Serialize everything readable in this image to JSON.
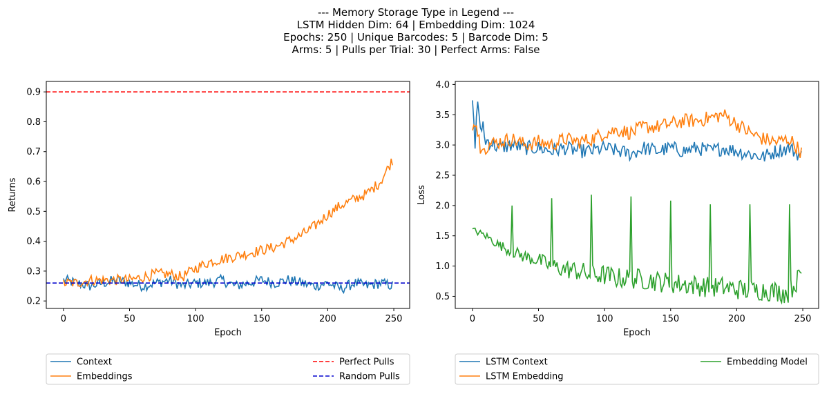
{
  "figure": {
    "title_lines": [
      "--- Memory Storage Type in Legend ---",
      "LSTM Hidden Dim: 64 | Embedding Dim: 1024",
      "Epochs: 250 | Unique Barcodes: 5 | Barcode Dim: 5",
      "Arms: 5 | Pulls per Trial: 30 | Perfect Arms: False"
    ]
  },
  "chart_data": [
    {
      "type": "line",
      "xlabel": "Epoch",
      "ylabel": "Returns",
      "xlim": [
        -13,
        262
      ],
      "ylim": [
        0.175,
        0.935
      ],
      "xticks": [
        0,
        50,
        100,
        150,
        200,
        250
      ],
      "yticks": [
        0.2,
        0.3,
        0.4,
        0.5,
        0.6,
        0.7,
        0.8,
        0.9
      ],
      "ytick_labels": [
        "0.2",
        "0.3",
        "0.4",
        "0.5",
        "0.6",
        "0.7",
        "0.8",
        "0.9"
      ],
      "legend": "below",
      "series": [
        {
          "name": "Context",
          "color": "#1f77b4",
          "style": "solid",
          "x": [
            0,
            10,
            20,
            30,
            40,
            50,
            60,
            70,
            80,
            90,
            100,
            110,
            120,
            130,
            140,
            150,
            160,
            170,
            180,
            190,
            200,
            210,
            220,
            230,
            240,
            250
          ],
          "y": [
            0.27,
            0.26,
            0.25,
            0.26,
            0.27,
            0.26,
            0.25,
            0.26,
            0.27,
            0.25,
            0.26,
            0.26,
            0.27,
            0.25,
            0.26,
            0.27,
            0.26,
            0.27,
            0.26,
            0.25,
            0.26,
            0.24,
            0.26,
            0.25,
            0.26,
            0.25
          ]
        },
        {
          "name": "Embeddings",
          "color": "#ff7f0e",
          "style": "solid",
          "x": [
            0,
            10,
            20,
            30,
            40,
            50,
            60,
            70,
            80,
            90,
            100,
            110,
            120,
            130,
            140,
            150,
            160,
            170,
            180,
            190,
            200,
            210,
            220,
            230,
            240,
            250
          ],
          "y": [
            0.26,
            0.26,
            0.27,
            0.27,
            0.27,
            0.27,
            0.28,
            0.29,
            0.29,
            0.28,
            0.31,
            0.33,
            0.34,
            0.35,
            0.36,
            0.37,
            0.38,
            0.4,
            0.42,
            0.45,
            0.49,
            0.52,
            0.54,
            0.56,
            0.6,
            0.68
          ]
        },
        {
          "name": "Perfect Pulls",
          "color": "#ff0000",
          "style": "dashed",
          "hline": 0.9
        },
        {
          "name": "Random Pulls",
          "color": "#0000cd",
          "style": "dashed",
          "hline": 0.26
        }
      ]
    },
    {
      "type": "line",
      "xlabel": "Epoch",
      "ylabel": "Loss",
      "xlim": [
        -13,
        262
      ],
      "ylim": [
        0.3,
        4.05
      ],
      "xticks": [
        0,
        50,
        100,
        150,
        200,
        250
      ],
      "yticks": [
        0.5,
        1.0,
        1.5,
        2.0,
        2.5,
        3.0,
        3.5,
        4.0
      ],
      "ytick_labels": [
        "0.5",
        "1.0",
        "1.5",
        "2.0",
        "2.5",
        "3.0",
        "3.5",
        "4.0"
      ],
      "legend": "below",
      "series": [
        {
          "name": "LSTM Context",
          "color": "#1f77b4",
          "style": "solid",
          "x": [
            0,
            2,
            4,
            6,
            8,
            10,
            20,
            30,
            40,
            50,
            60,
            70,
            80,
            90,
            100,
            110,
            120,
            130,
            140,
            150,
            160,
            170,
            180,
            190,
            200,
            210,
            220,
            230,
            240,
            250
          ],
          "y": [
            3.88,
            3.05,
            3.6,
            3.2,
            3.3,
            3.1,
            2.95,
            3.0,
            2.95,
            2.95,
            2.9,
            2.95,
            2.9,
            2.9,
            2.95,
            2.9,
            2.85,
            2.95,
            2.9,
            2.95,
            2.9,
            2.95,
            2.9,
            2.95,
            2.9,
            2.85,
            2.8,
            2.9,
            2.95,
            2.8
          ]
        },
        {
          "name": "LSTM Embedding",
          "color": "#ff7f0e",
          "style": "solid",
          "x": [
            0,
            2,
            4,
            6,
            8,
            10,
            20,
            30,
            40,
            50,
            60,
            70,
            80,
            90,
            100,
            110,
            120,
            130,
            140,
            150,
            160,
            170,
            180,
            190,
            200,
            210,
            220,
            230,
            240,
            250
          ],
          "y": [
            3.35,
            3.4,
            3.1,
            3.0,
            3.05,
            3.0,
            3.05,
            3.1,
            3.0,
            3.05,
            3.0,
            3.1,
            3.05,
            3.1,
            3.2,
            3.25,
            3.2,
            3.3,
            3.3,
            3.35,
            3.4,
            3.4,
            3.45,
            3.5,
            3.35,
            3.2,
            3.1,
            3.05,
            3.1,
            2.85
          ]
        },
        {
          "name": "Embedding Model",
          "color": "#2ca02c",
          "style": "solid",
          "x": [
            0,
            10,
            20,
            29,
            30,
            40,
            50,
            59,
            60,
            70,
            80,
            89,
            90,
            100,
            110,
            119,
            120,
            130,
            140,
            149,
            150,
            160,
            170,
            179,
            180,
            190,
            200,
            209,
            210,
            220,
            230,
            239,
            240,
            250
          ],
          "y": [
            1.6,
            1.5,
            1.35,
            1.25,
            2.0,
            1.15,
            1.1,
            1.0,
            2.12,
            0.95,
            0.92,
            0.85,
            2.18,
            0.85,
            0.8,
            0.8,
            2.15,
            0.78,
            0.75,
            0.72,
            2.08,
            0.7,
            0.68,
            0.65,
            2.02,
            0.65,
            0.62,
            0.6,
            2.02,
            0.6,
            0.58,
            0.55,
            2.02,
            0.9
          ]
        }
      ]
    }
  ]
}
